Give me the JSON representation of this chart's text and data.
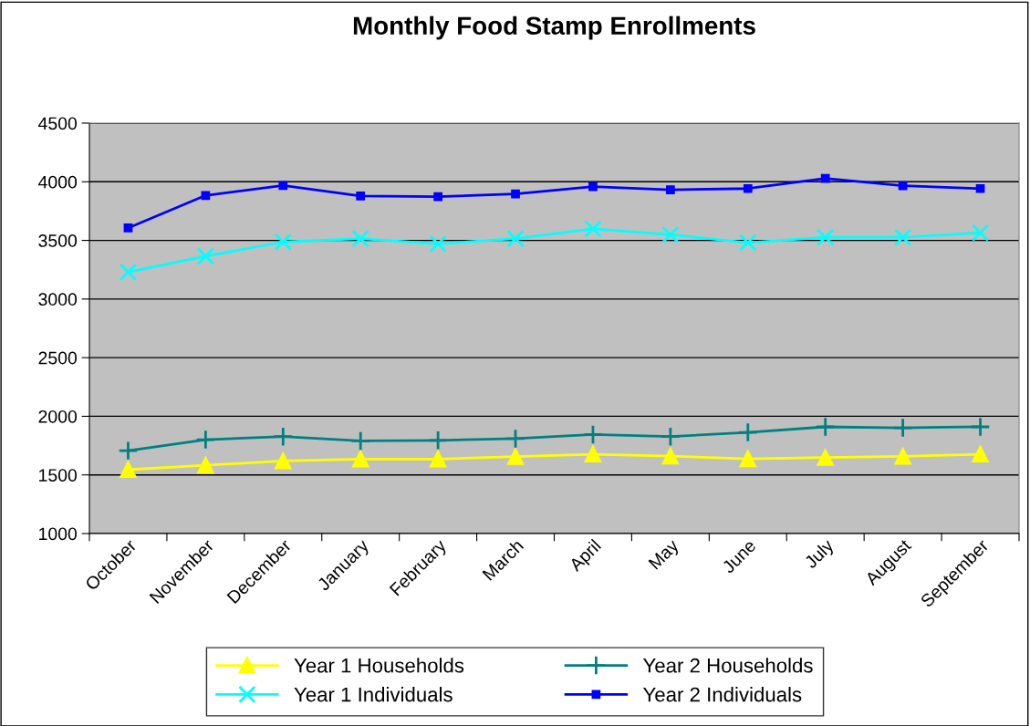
{
  "chart_data": {
    "type": "line",
    "title": "Monthly Food Stamp Enrollments",
    "categories": [
      "October",
      "November",
      "December",
      "January",
      "February",
      "March",
      "April",
      "May",
      "June",
      "July",
      "August",
      "September"
    ],
    "series": [
      {
        "name": "Year 1 Households",
        "color": "#ffff00",
        "marker": "triangle",
        "values": [
          1545,
          1582,
          1619,
          1635,
          1635,
          1656,
          1676,
          1660,
          1637,
          1648,
          1658,
          1676
        ]
      },
      {
        "name": "Year 1 Individuals",
        "color": "#00ffff",
        "marker": "cross",
        "values": [
          3230,
          3365,
          3487,
          3515,
          3471,
          3515,
          3598,
          3549,
          3481,
          3526,
          3526,
          3565
        ]
      },
      {
        "name": "Year 2 Households",
        "color": "#008080",
        "marker": "plus",
        "values": [
          1707,
          1801,
          1827,
          1790,
          1795,
          1809,
          1844,
          1827,
          1863,
          1910,
          1902,
          1910
        ]
      },
      {
        "name": "Year 2 Individuals",
        "color": "#0000ff",
        "marker": "square",
        "values": [
          3606,
          3883,
          3969,
          3878,
          3873,
          3897,
          3958,
          3932,
          3942,
          4028,
          3966,
          3942
        ]
      }
    ],
    "ylim": [
      1000,
      4500
    ],
    "yticks": [
      1000,
      1500,
      2000,
      2500,
      3000,
      3500,
      4000,
      4500
    ],
    "grid": "y",
    "legend": "bottom"
  }
}
